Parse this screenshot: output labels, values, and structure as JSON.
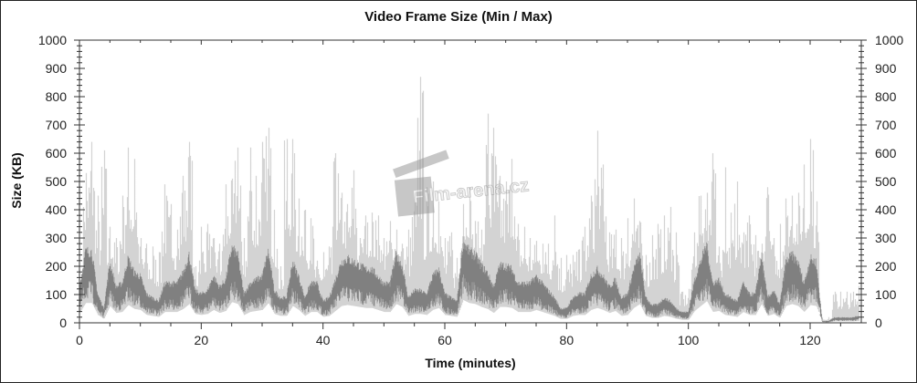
{
  "chart_data": {
    "type": "area",
    "title": "Video Frame Size (Min / Max)",
    "xlabel": "Time (minutes)",
    "ylabel": "Size (KB)",
    "xlim": [
      0,
      128.4
    ],
    "ylim": [
      0,
      1000
    ],
    "x_ticks": [
      0,
      20,
      40,
      60,
      80,
      100,
      120
    ],
    "y_ticks": [
      0,
      100,
      200,
      300,
      400,
      500,
      600,
      700,
      800,
      900,
      1000
    ],
    "y_axis_both_sides": true,
    "grid": false,
    "x_minutes": [
      0,
      1,
      2,
      3,
      4,
      5,
      6,
      7,
      8,
      9,
      10,
      11,
      12,
      13,
      14,
      15,
      16,
      17,
      18,
      19,
      20,
      21,
      22,
      23,
      24,
      25,
      26,
      27,
      28,
      29,
      30,
      31,
      32,
      33,
      34,
      35,
      36,
      37,
      38,
      39,
      40,
      41,
      42,
      43,
      44,
      45,
      46,
      47,
      48,
      49,
      50,
      51,
      52,
      53,
      54,
      55,
      56,
      57,
      58,
      59,
      60,
      61,
      62,
      63,
      64,
      65,
      66,
      67,
      68,
      69,
      70,
      71,
      72,
      73,
      74,
      75,
      76,
      77,
      78,
      79,
      80,
      81,
      82,
      83,
      84,
      85,
      86,
      87,
      88,
      89,
      90,
      91,
      92,
      93,
      94,
      95,
      96,
      97,
      98,
      99,
      100,
      101,
      102,
      103,
      104,
      105,
      106,
      107,
      108,
      109,
      110,
      111,
      112,
      113,
      114,
      115,
      116,
      117,
      118,
      119,
      120,
      121,
      122,
      123,
      124,
      125,
      126,
      127,
      128
    ],
    "series": [
      {
        "name": "Max",
        "color": "#d3d3d3",
        "values": [
          100,
          530,
          640,
          450,
          610,
          340,
          300,
          450,
          620,
          580,
          300,
          280,
          270,
          250,
          490,
          420,
          330,
          520,
          640,
          200,
          340,
          350,
          300,
          280,
          490,
          510,
          620,
          300,
          620,
          520,
          640,
          690,
          400,
          200,
          650,
          650,
          440,
          400,
          370,
          220,
          250,
          270,
          600,
          460,
          420,
          540,
          300,
          380,
          390,
          380,
          300,
          360,
          330,
          280,
          330,
          460,
          870,
          480,
          500,
          430,
          300,
          320,
          230,
          420,
          480,
          360,
          330,
          740,
          690,
          520,
          500,
          580,
          350,
          340,
          300,
          290,
          280,
          280,
          380,
          230,
          240,
          240,
          260,
          340,
          450,
          680,
          560,
          320,
          330,
          300,
          370,
          440,
          360,
          240,
          310,
          350,
          380,
          410,
          320,
          110,
          120,
          320,
          450,
          460,
          600,
          270,
          550,
          390,
          500,
          320,
          380,
          310,
          280,
          480,
          300,
          350,
          440,
          450,
          460,
          560,
          650,
          430,
          20,
          20,
          110,
          110,
          110,
          110,
          130
        ]
      },
      {
        "name": "Min",
        "color": "#808080",
        "values": [
          100,
          200,
          200,
          80,
          40,
          170,
          100,
          110,
          180,
          140,
          130,
          80,
          70,
          60,
          110,
          110,
          110,
          140,
          190,
          90,
          80,
          90,
          130,
          100,
          120,
          210,
          190,
          80,
          110,
          120,
          130,
          200,
          90,
          70,
          70,
          170,
          130,
          70,
          110,
          110,
          60,
          70,
          120,
          170,
          180,
          170,
          160,
          150,
          150,
          130,
          110,
          110,
          190,
          160,
          70,
          90,
          90,
          80,
          130,
          150,
          80,
          70,
          60,
          230,
          200,
          190,
          160,
          140,
          100,
          160,
          160,
          150,
          110,
          110,
          110,
          130,
          110,
          90,
          70,
          40,
          40,
          70,
          80,
          80,
          130,
          150,
          130,
          100,
          120,
          70,
          80,
          150,
          190,
          70,
          50,
          50,
          70,
          60,
          40,
          30,
          30,
          120,
          170,
          220,
          110,
          120,
          80,
          70,
          60,
          110,
          80,
          80,
          190,
          70,
          90,
          50,
          170,
          190,
          170,
          110,
          180,
          170,
          5,
          5,
          15,
          15,
          15,
          15,
          20
        ]
      }
    ],
    "watermark": "Film-arena.cz"
  }
}
